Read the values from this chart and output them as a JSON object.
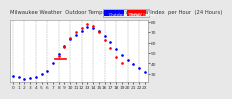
{
  "title": "Milwaukee Weather  Outdoor Temperature  vs THSW Index  per Hour  (24 Hours)",
  "bg_color": "#e8e8e8",
  "plot_bg": "#ffffff",
  "grid_color": "#aaaaaa",
  "legend_blue_label": "Outdoor Temp",
  "legend_red_label": "THSW Index",
  "blue_color": "#0000ff",
  "red_color": "#ff0000",
  "hours": [
    0,
    1,
    2,
    3,
    4,
    5,
    6,
    7,
    8,
    9,
    10,
    11,
    12,
    13,
    14,
    15,
    16,
    17,
    18,
    19,
    20,
    21,
    22,
    23
  ],
  "blue_temp": [
    28,
    27,
    25,
    26,
    27,
    30,
    33,
    40,
    49,
    57,
    63,
    67,
    71,
    75,
    74,
    71,
    66,
    61,
    54,
    48,
    43,
    39,
    36,
    32
  ],
  "red_thsw": [
    null,
    null,
    null,
    null,
    null,
    null,
    null,
    null,
    47,
    56,
    64,
    70,
    74,
    78,
    76,
    70,
    62,
    55,
    46,
    40,
    null,
    null,
    null,
    null
  ],
  "red_line_x": [
    7.3,
    9.3
  ],
  "red_line_y": [
    44,
    44
  ],
  "ylim": [
    22,
    82
  ],
  "xlim": [
    -0.5,
    23.5
  ],
  "yticks": [
    30,
    40,
    50,
    60,
    70,
    80
  ],
  "ytick_labels": [
    "30",
    "40",
    "50",
    "60",
    "70",
    "80"
  ],
  "xtick_positions": [
    0,
    1,
    2,
    3,
    4,
    5,
    6,
    7,
    8,
    9,
    10,
    11,
    12,
    13,
    14,
    15,
    16,
    17,
    18,
    19,
    20,
    21,
    22,
    23
  ],
  "xtick_labels": [
    "0",
    "1",
    "2",
    "3",
    "4",
    "5",
    "6",
    "7",
    "8",
    "9",
    "10",
    "11",
    "12",
    "13",
    "14",
    "15",
    "16",
    "17",
    "18",
    "19",
    "20",
    "21",
    "22",
    "23"
  ],
  "grid_positions": [
    0,
    2,
    4,
    6,
    8,
    10,
    12,
    14,
    16,
    18,
    20,
    22
  ],
  "title_fontsize": 3.8,
  "tick_fontsize": 3.2,
  "marker_size": 1.8,
  "legend_fontsize": 3.2
}
